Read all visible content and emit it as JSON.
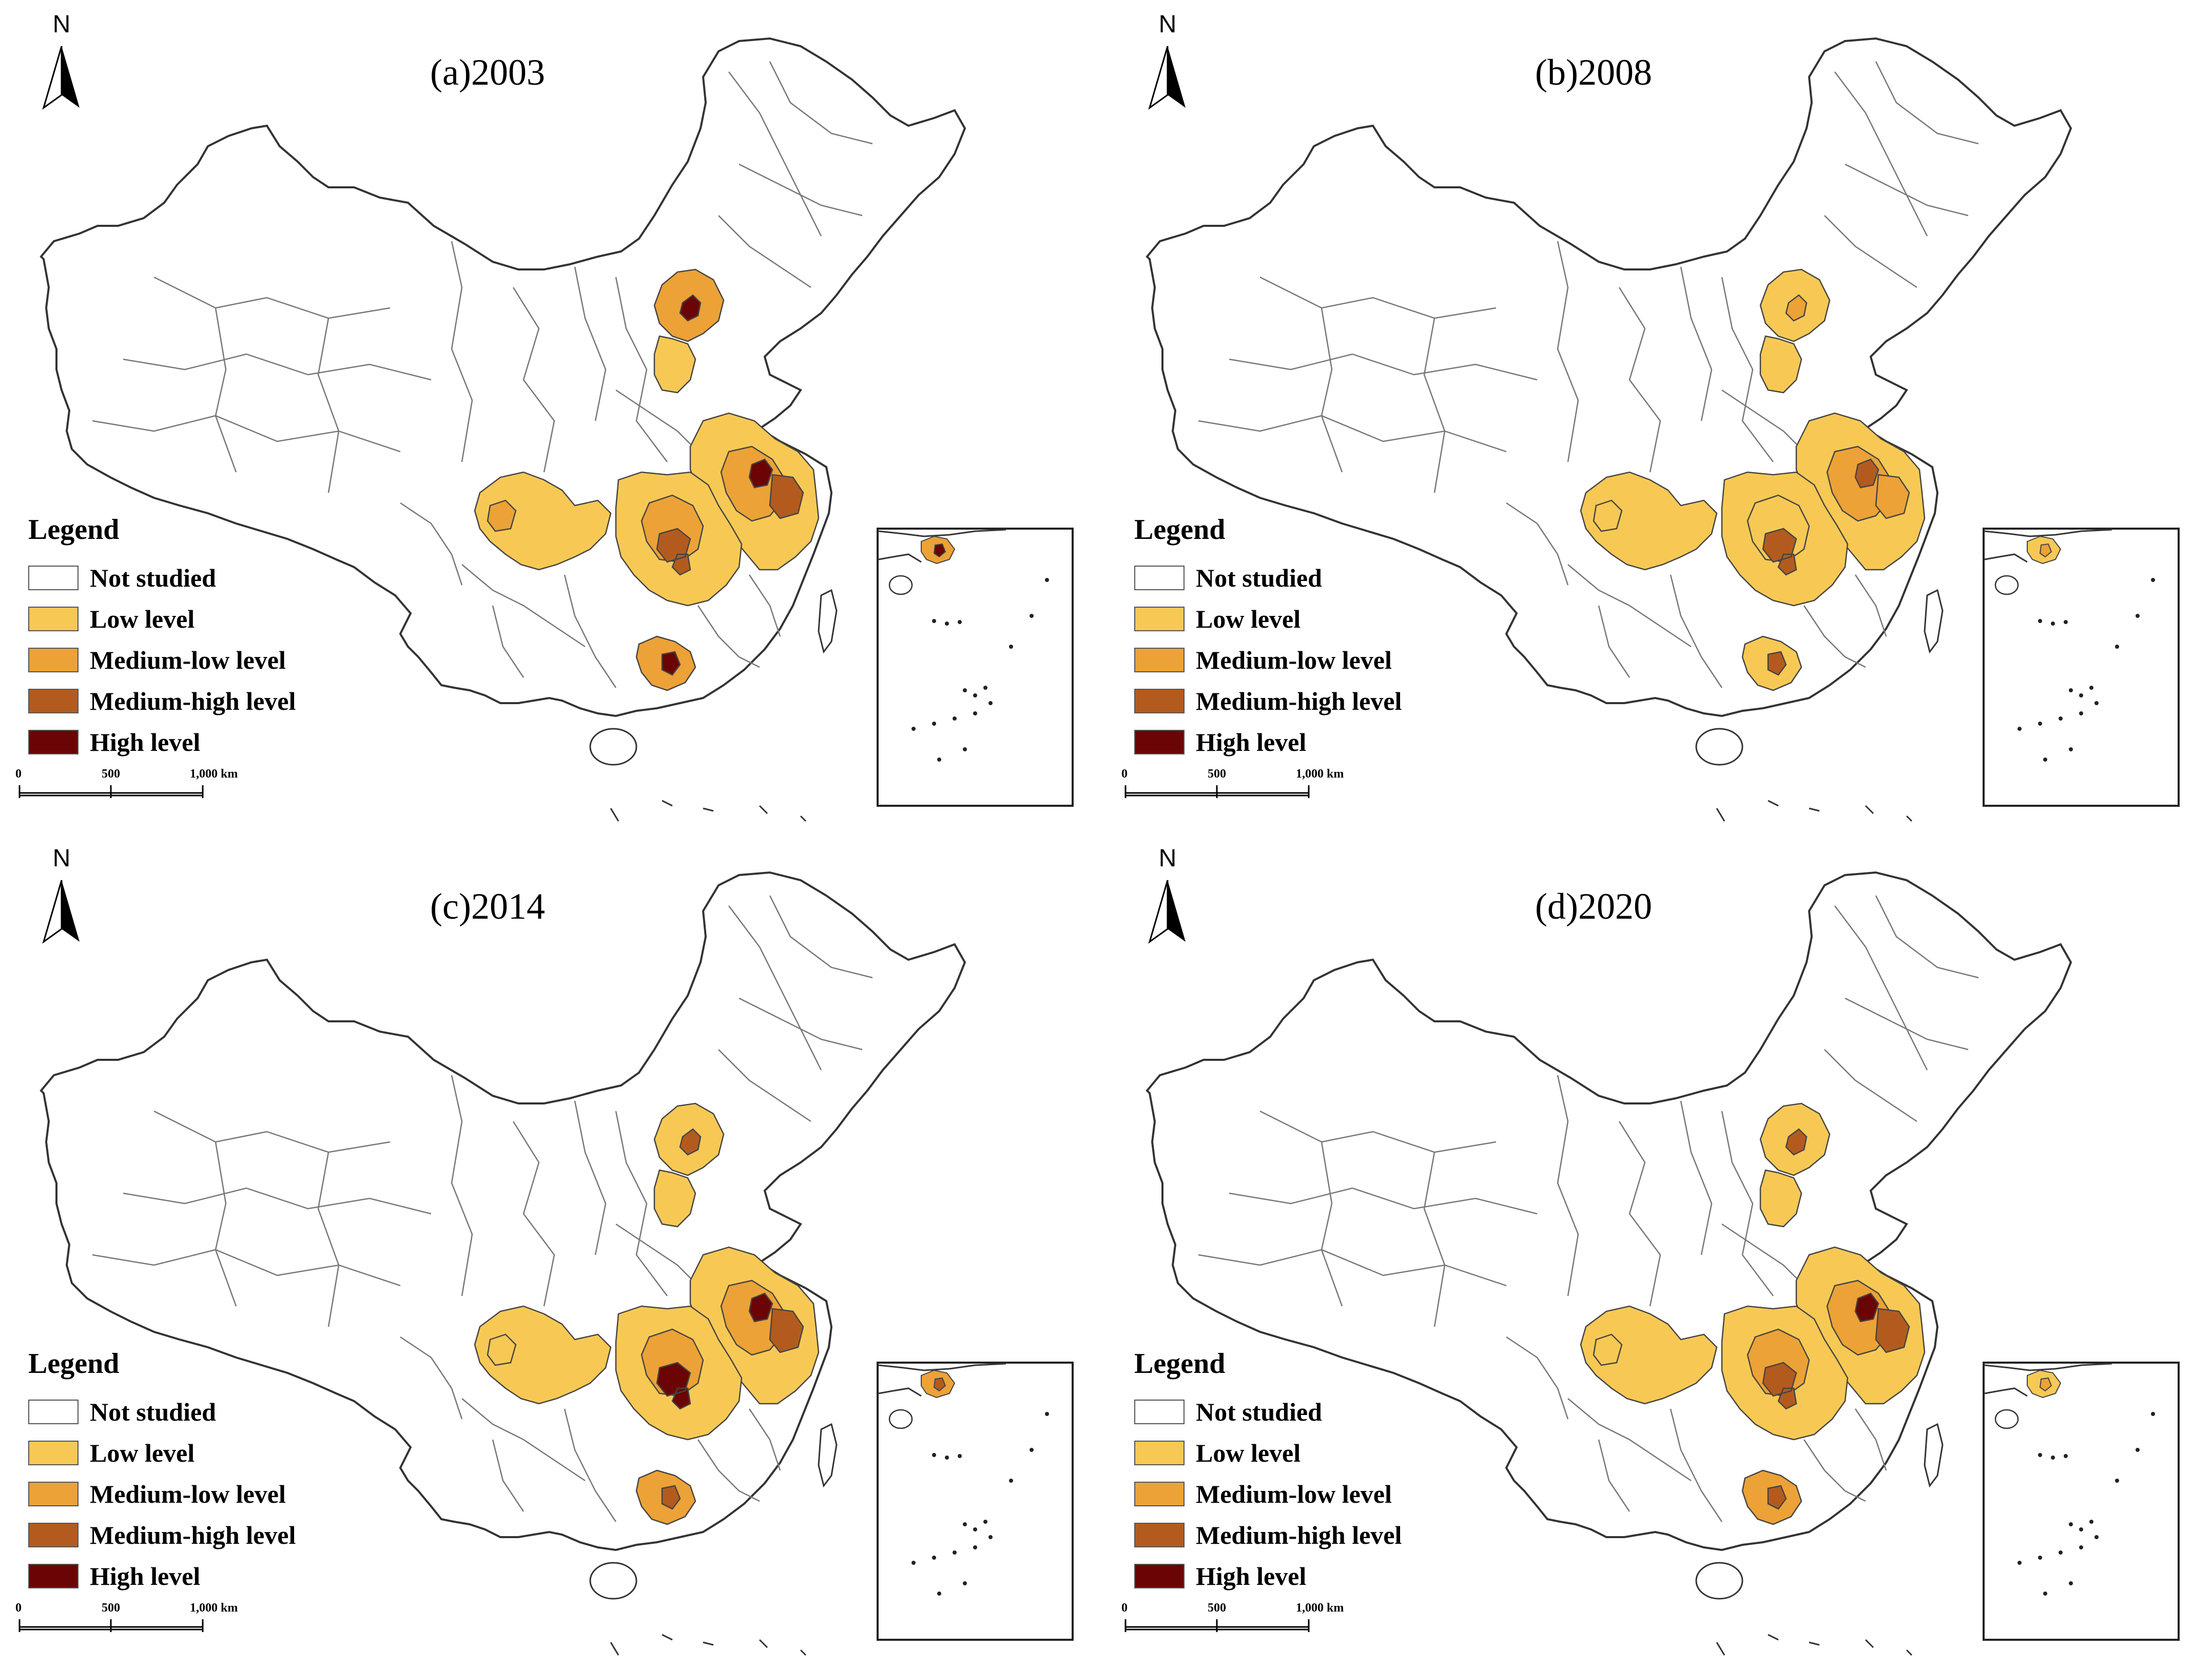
{
  "figure": {
    "panels": [
      {
        "title": "(a)2003",
        "key": "a",
        "regions": {
          "jingjinji": "medium_low",
          "jingjinji_core": "high",
          "jingjinji_south": "low",
          "yangtze_delta": "low",
          "yangtze_delta_inner": "medium_low",
          "shanghai_core": "high",
          "delta_east": "medium_high",
          "central_yangtze": "low",
          "central_inner": "medium_low",
          "central_hubs": "medium_high",
          "chengyu": "low",
          "chengyu_east": "medium_low",
          "pearl_delta": "medium_low",
          "pearl_core": "high",
          "inset_prd": "medium_low",
          "inset_core": "high"
        }
      },
      {
        "title": "(b)2008",
        "key": "b",
        "regions": {
          "jingjinji": "low",
          "jingjinji_core": "medium_low",
          "jingjinji_south": "low",
          "yangtze_delta": "low",
          "yangtze_delta_inner": "medium_low",
          "shanghai_core": "medium_high",
          "delta_east": "medium_low",
          "central_yangtze": "low",
          "central_inner": "low",
          "central_hubs": "medium_high",
          "chengyu": "low",
          "chengyu_east": "low",
          "pearl_delta": "low",
          "pearl_core": "medium_high",
          "inset_prd": "low",
          "inset_core": "medium_low"
        }
      },
      {
        "title": "(c)2014",
        "key": "c",
        "regions": {
          "jingjinji": "low",
          "jingjinji_core": "medium_high",
          "jingjinji_south": "low",
          "yangtze_delta": "low",
          "yangtze_delta_inner": "medium_low",
          "shanghai_core": "high",
          "delta_east": "medium_high",
          "central_yangtze": "low",
          "central_inner": "medium_low",
          "central_hubs": "high",
          "chengyu": "low",
          "chengyu_east": "low",
          "pearl_delta": "medium_low",
          "pearl_core": "medium_high",
          "inset_prd": "medium_low",
          "inset_core": "medium_high"
        }
      },
      {
        "title": "(d)2020",
        "key": "d",
        "regions": {
          "jingjinji": "low",
          "jingjinji_core": "medium_high",
          "jingjinji_south": "low",
          "yangtze_delta": "low",
          "yangtze_delta_inner": "medium_low",
          "shanghai_core": "high",
          "delta_east": "medium_high",
          "central_yangtze": "low",
          "central_inner": "medium_low",
          "central_hubs": "medium_high",
          "chengyu": "low",
          "chengyu_east": "low",
          "pearl_delta": "medium_low",
          "pearl_core": "medium_high",
          "inset_prd": "low",
          "inset_core": "medium_low"
        }
      }
    ],
    "legend": {
      "title": "Legend",
      "items": [
        {
          "key": "not_studied",
          "label": "Not studied",
          "color": "#ffffff"
        },
        {
          "key": "low",
          "label": "Low level",
          "color": "#f7c954"
        },
        {
          "key": "medium_low",
          "label": "Medium-low level",
          "color": "#eca236"
        },
        {
          "key": "medium_high",
          "label": "Medium-high level",
          "color": "#b35b1e"
        },
        {
          "key": "high",
          "label": "High level",
          "color": "#6b0505"
        }
      ]
    },
    "north_arrow": {
      "letter": "N"
    },
    "scale_bar": {
      "ticks": [
        "0",
        "500",
        "1,000 km"
      ]
    },
    "colors": {
      "boundary": "#333333",
      "land": "#ffffff"
    }
  }
}
